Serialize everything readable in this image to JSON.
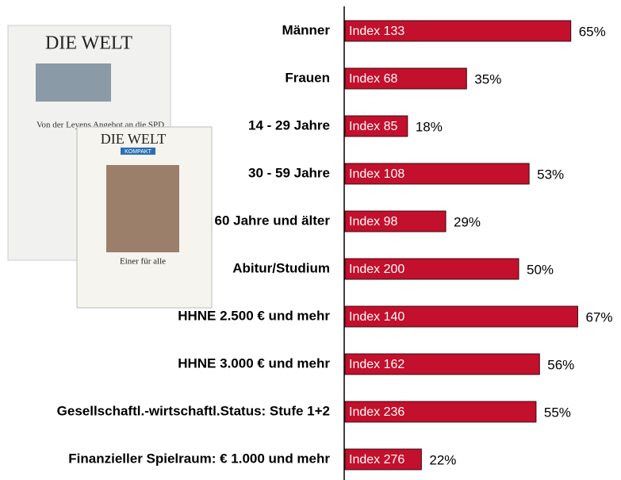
{
  "chart_data": {
    "type": "bar",
    "orientation": "horizontal",
    "categories": [
      "Männer",
      "Frauen",
      "14 - 29 Jahre",
      "30 - 59 Jahre",
      "60 Jahre und älter",
      "Abitur/Studium",
      "HHNE 2.500 € und mehr",
      "HHNE 3.000 € und  mehr",
      "Gesellschaftl.-wirtschaftl.Status: Stufe 1+2",
      "Finanzieller Spielraum: € 1.000 und mehr"
    ],
    "values": [
      65,
      35,
      18,
      53,
      29,
      50,
      67,
      56,
      55,
      22
    ],
    "value_labels": [
      "65%",
      "35%",
      "18%",
      "53%",
      "29%",
      "50%",
      "67%",
      "56%",
      "55%",
      "22%"
    ],
    "index_labels": [
      "Index 133",
      "Index 68",
      "Index 85",
      "Index 108",
      "Index 98",
      "Index 200",
      "Index 140",
      "Index 162",
      "Index 236",
      "Index 276"
    ],
    "color": "#c3102c",
    "xlim": [
      0,
      75
    ]
  },
  "images": {
    "newspaper_logo": "DIE WELT",
    "headline": "Von der Leyens Angebot an die SPD",
    "compact_logo": "DIE WELT",
    "compact_badge": "KOMPAKT",
    "compact_headline": "Einer für alle"
  }
}
